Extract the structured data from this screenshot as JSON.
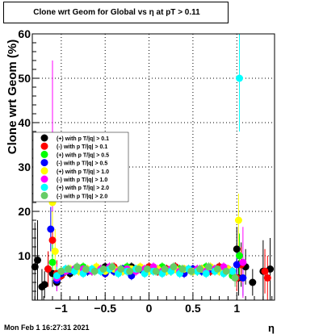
{
  "title": "Clone wrt Geom for Global vs   η at pT > 0.11",
  "footer": "Mon Feb  1 16:27:31 2021",
  "chart_data": {
    "type": "scatter",
    "title": "Clone wrt Geom for Global vs   η at pT > 0.11",
    "xlabel": "η",
    "ylabel": "Clone wrt Geom (%)",
    "xlim": [
      -1.33,
      1.43
    ],
    "ylim": [
      0,
      60
    ],
    "xticks": [
      -1,
      -0.5,
      0,
      0.5,
      1
    ],
    "xtick_labels": [
      "−1",
      "−0.5",
      "0",
      "0.5",
      "1"
    ],
    "yticks": [
      10,
      20,
      30,
      40,
      50,
      60
    ],
    "grid": true,
    "legend_position": "left-middle",
    "series": [
      {
        "name": "(+) with p T/|q| > 0.1",
        "color": "#000000",
        "x": [
          -1.3,
          -1.27,
          -1.22,
          -1.19,
          -1.15,
          -1.1,
          -1.05,
          -1.0,
          -0.95,
          -0.9,
          -0.8,
          -0.7,
          -0.6,
          -0.5,
          -0.4,
          -0.3,
          -0.2,
          -0.1,
          0.0,
          0.1,
          0.2,
          0.3,
          0.4,
          0.5,
          0.6,
          0.7,
          0.8,
          0.9,
          0.95,
          1.0,
          1.02,
          1.05,
          1.1,
          1.18,
          1.3,
          1.38
        ],
        "y": [
          7.5,
          9.0,
          3.0,
          3.5,
          7.0,
          6.0,
          4.0,
          5.5,
          6.5,
          6.0,
          7.0,
          6.5,
          7.0,
          7.5,
          6.5,
          7.0,
          7.5,
          7.0,
          7.5,
          6.5,
          7.0,
          7.5,
          7.0,
          6.5,
          7.0,
          6.5,
          7.5,
          7.0,
          6.5,
          11.5,
          5.0,
          8.0,
          7.5,
          4.0,
          6.5,
          7.0
        ],
        "err": [
          10,
          9,
          4,
          3,
          4,
          3,
          2,
          1,
          1,
          1,
          1,
          1,
          1,
          1,
          1,
          1,
          1,
          1,
          1,
          1,
          1,
          1,
          1,
          1,
          1,
          1,
          1,
          1,
          1,
          5,
          4,
          5,
          4,
          3,
          7,
          7
        ]
      },
      {
        "name": "(-) with p T/|q| > 0.1",
        "color": "#ff0000",
        "x": [
          -1.15,
          -1.1,
          -1.05,
          -1.0,
          -0.9,
          -0.8,
          -0.7,
          -0.6,
          -0.5,
          -0.4,
          -0.3,
          -0.2,
          -0.1,
          0.0,
          0.1,
          0.2,
          0.3,
          0.4,
          0.5,
          0.6,
          0.7,
          0.8,
          0.9,
          1.0,
          1.05,
          1.32,
          1.35
        ],
        "y": [
          7.0,
          13.5,
          6.0,
          5.5,
          6.5,
          7.0,
          6.5,
          7.0,
          6.0,
          7.5,
          6.5,
          7.0,
          7.0,
          7.5,
          6.5,
          7.0,
          7.5,
          6.5,
          7.0,
          7.0,
          6.5,
          7.5,
          7.0,
          5.0,
          8.0,
          6.5,
          5.0
        ],
        "err": [
          4,
          5,
          3,
          1,
          1,
          1,
          1,
          1,
          1,
          1,
          1,
          1,
          1,
          1,
          1,
          1,
          1,
          1,
          1,
          1,
          1,
          1,
          1,
          3,
          4,
          5,
          5
        ]
      },
      {
        "name": "(+) with p T/|q| > 0.5",
        "color": "#00ff00",
        "x": [
          -1.1,
          -1.05,
          -1.0,
          -0.95,
          -0.85,
          -0.75,
          -0.65,
          -0.55,
          -0.45,
          -0.35,
          -0.25,
          -0.15,
          -0.05,
          0.05,
          0.15,
          0.25,
          0.35,
          0.45,
          0.55,
          0.65,
          0.75,
          0.85,
          0.95,
          1.03
        ],
        "y": [
          8.5,
          5.5,
          6.0,
          6.5,
          7.0,
          7.5,
          6.5,
          7.0,
          7.0,
          6.5,
          7.5,
          7.0,
          6.5,
          7.0,
          7.5,
          6.5,
          7.0,
          7.0,
          6.5,
          7.5,
          7.0,
          6.5,
          5.5,
          10.0
        ],
        "err": [
          4,
          2,
          1,
          1,
          1,
          1,
          1,
          1,
          1,
          1,
          1,
          1,
          1,
          1,
          1,
          1,
          1,
          1,
          1,
          1,
          1,
          1,
          1,
          5
        ]
      },
      {
        "name": "(-) with p T/|q| > 0.5",
        "color": "#0000ff",
        "x": [
          -1.12,
          -1.05,
          -1.0,
          -0.9,
          -0.8,
          -0.7,
          -0.6,
          -0.5,
          -0.4,
          -0.3,
          -0.2,
          -0.1,
          0.0,
          0.1,
          0.2,
          0.3,
          0.4,
          0.5,
          0.6,
          0.7,
          0.8,
          0.9,
          1.0,
          1.07
        ],
        "y": [
          16.0,
          4.5,
          6.0,
          6.5,
          7.0,
          6.5,
          7.0,
          6.0,
          6.5,
          7.0,
          5.5,
          7.0,
          6.5,
          7.0,
          6.5,
          7.0,
          6.0,
          7.0,
          6.5,
          7.0,
          6.5,
          7.0,
          8.0,
          5.0
        ],
        "err": [
          5,
          2,
          1,
          1,
          1,
          1,
          1,
          1,
          1,
          1,
          1,
          1,
          1,
          1,
          1,
          1,
          1,
          1,
          1,
          1,
          1,
          1,
          3,
          4
        ]
      },
      {
        "name": "(+) with p T/|q| > 1.0",
        "color": "#ffff00",
        "x": [
          -1.1,
          -1.07,
          -1.0,
          -0.9,
          -0.8,
          -0.7,
          -0.6,
          -0.5,
          -0.4,
          -0.3,
          -0.2,
          -0.1,
          0.0,
          0.1,
          0.2,
          0.3,
          0.4,
          0.5,
          0.6,
          0.7,
          0.8,
          0.9,
          1.02
        ],
        "y": [
          22.0,
          11.0,
          6.5,
          7.0,
          6.5,
          7.0,
          7.5,
          6.5,
          7.0,
          6.5,
          7.0,
          7.5,
          6.5,
          7.0,
          6.5,
          7.0,
          7.0,
          6.5,
          7.0,
          7.5,
          6.5,
          7.0,
          18.0
        ],
        "err": [
          6,
          5,
          1,
          1,
          1,
          1,
          1,
          1,
          1,
          1,
          1,
          1,
          1,
          1,
          1,
          1,
          1,
          1,
          1,
          1,
          1,
          1,
          6
        ]
      },
      {
        "name": "(-) with p T/|q| > 1.0",
        "color": "#ff00ff",
        "x": [
          -1.1,
          -1.05,
          -0.95,
          -0.85,
          -0.75,
          -0.65,
          -0.55,
          -0.45,
          -0.35,
          -0.25,
          -0.15,
          -0.05,
          0.05,
          0.15,
          0.25,
          0.35,
          0.45,
          0.55,
          0.65,
          0.75,
          0.85,
          0.95,
          1.07
        ],
        "y": [
          37.0,
          5.0,
          6.5,
          7.0,
          7.0,
          6.5,
          7.0,
          7.5,
          6.5,
          7.0,
          6.5,
          7.0,
          7.5,
          6.5,
          7.0,
          6.5,
          7.0,
          7.0,
          6.5,
          7.0,
          7.5,
          6.5,
          8.5
        ],
        "err": [
          17,
          3,
          1,
          1,
          1,
          1,
          1,
          1,
          1,
          1,
          1,
          1,
          1,
          1,
          1,
          1,
          1,
          1,
          1,
          1,
          1,
          1,
          8
        ]
      },
      {
        "name": "(+) with p T/|q| > 2.0",
        "color": "#00ffff",
        "x": [
          -1.05,
          -0.95,
          -0.85,
          -0.75,
          -0.65,
          -0.55,
          -0.45,
          -0.35,
          -0.25,
          -0.15,
          -0.05,
          0.05,
          0.15,
          0.25,
          0.35,
          0.45,
          0.55,
          0.65,
          0.75,
          0.85,
          0.95,
          1.03
        ],
        "y": [
          5.5,
          7.0,
          6.5,
          6.0,
          7.0,
          6.5,
          7.0,
          6.0,
          6.5,
          7.0,
          6.0,
          6.5,
          6.0,
          6.5,
          6.0,
          7.0,
          6.5,
          6.0,
          6.5,
          6.0,
          6.5,
          50.0
        ],
        "err": [
          2,
          1,
          1,
          1,
          1,
          1,
          1,
          1,
          1,
          1,
          1,
          1,
          1,
          1,
          1,
          1,
          1,
          1,
          1,
          1,
          1,
          12
        ]
      },
      {
        "name": "(-) with p T/|q| > 2.0",
        "color": "#66cc66",
        "x": [
          -1.0,
          -0.92,
          -0.82,
          -0.72,
          -0.62,
          -0.52,
          -0.42,
          -0.32,
          -0.22,
          -0.12,
          -0.02,
          0.08,
          0.18,
          0.28,
          0.38,
          0.48,
          0.58,
          0.68,
          0.78,
          0.88,
          0.98
        ],
        "y": [
          6.5,
          7.0,
          7.5,
          7.0,
          6.5,
          7.0,
          7.5,
          7.0,
          6.5,
          7.0,
          7.0,
          6.5,
          7.0,
          7.5,
          7.0,
          6.5,
          7.0,
          7.5,
          7.0,
          6.5,
          5.0
        ],
        "err": [
          1,
          1,
          1,
          1,
          1,
          1,
          1,
          1,
          1,
          1,
          1,
          1,
          1,
          1,
          1,
          1,
          1,
          1,
          1,
          1,
          2
        ]
      }
    ]
  }
}
